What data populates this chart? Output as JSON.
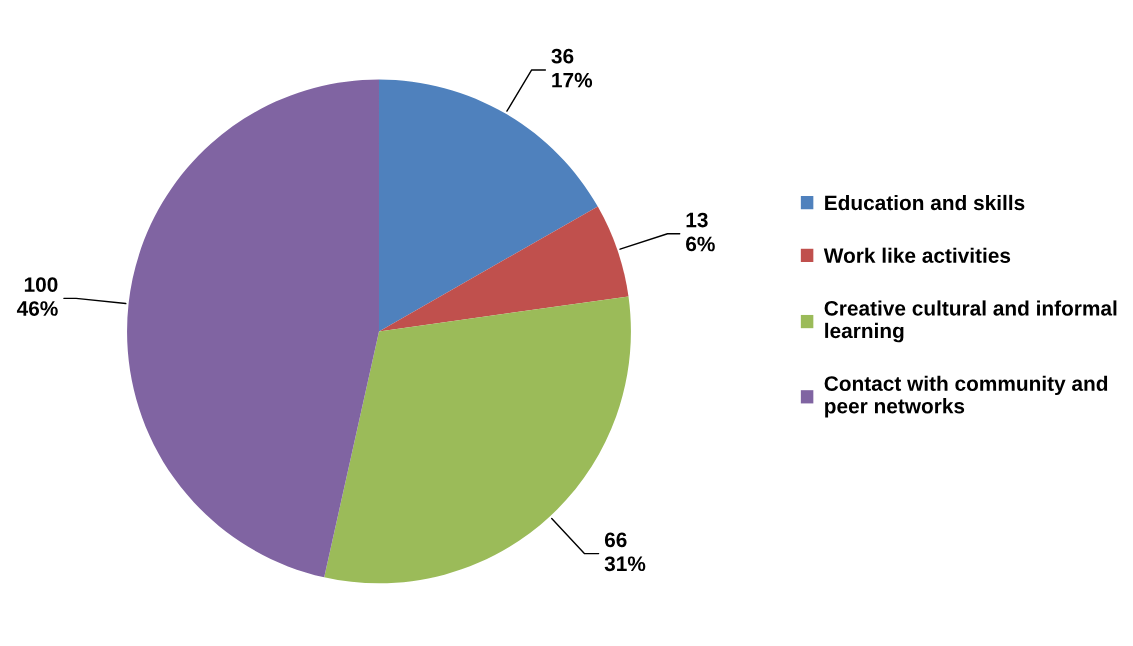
{
  "chart_data": {
    "type": "pie",
    "categories": [
      "Education and skills",
      "Work like activities",
      "Creative cultural and informal\nlearning",
      "Contact with community and\npeer networks"
    ],
    "values": [
      36,
      13,
      66,
      100
    ],
    "value_labels": [
      "36\n17%",
      "13\n6%",
      "66\n31%",
      "100\n46%"
    ],
    "colors": [
      "#4f81bd",
      "#c0504d",
      "#9bbb59",
      "#8064a2"
    ],
    "legend": "right"
  }
}
